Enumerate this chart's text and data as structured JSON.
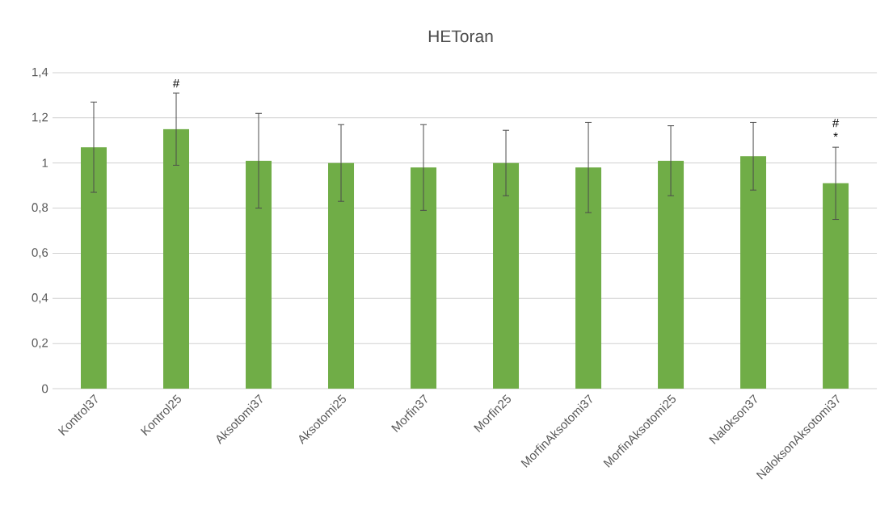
{
  "chart_data": {
    "type": "bar",
    "title": "HEToran",
    "categories": [
      "Kontrol37",
      "Kontrol25",
      "Aksotomi37",
      "Aksotomi25",
      "Morfin37",
      "Morfin25",
      "MorfinAksotomi37",
      "MorfinAksotomi25",
      "Nalokson37",
      "NaloksonAksotomi37"
    ],
    "values": [
      1.07,
      1.15,
      1.01,
      1.0,
      0.98,
      1.0,
      0.98,
      1.01,
      1.03,
      0.91
    ],
    "errors": [
      0.2,
      0.16,
      0.21,
      0.17,
      0.19,
      0.145,
      0.2,
      0.155,
      0.15,
      0.16
    ],
    "color": "#70ad47",
    "ylim": [
      0,
      1.4
    ],
    "yticks": [
      0,
      {
        "value": 0.2,
        "label": "0,2"
      },
      {
        "value": 0.4,
        "label": "0,4"
      },
      {
        "value": 0.6,
        "label": "0,6"
      },
      {
        "value": 0.8,
        "label": "0,8"
      },
      1,
      {
        "value": 1.2,
        "label": "1,2"
      },
      {
        "value": 1.4,
        "label": "1,4"
      }
    ],
    "grid": "y",
    "annotations": [
      "#",
      "#",
      "*"
    ]
  }
}
